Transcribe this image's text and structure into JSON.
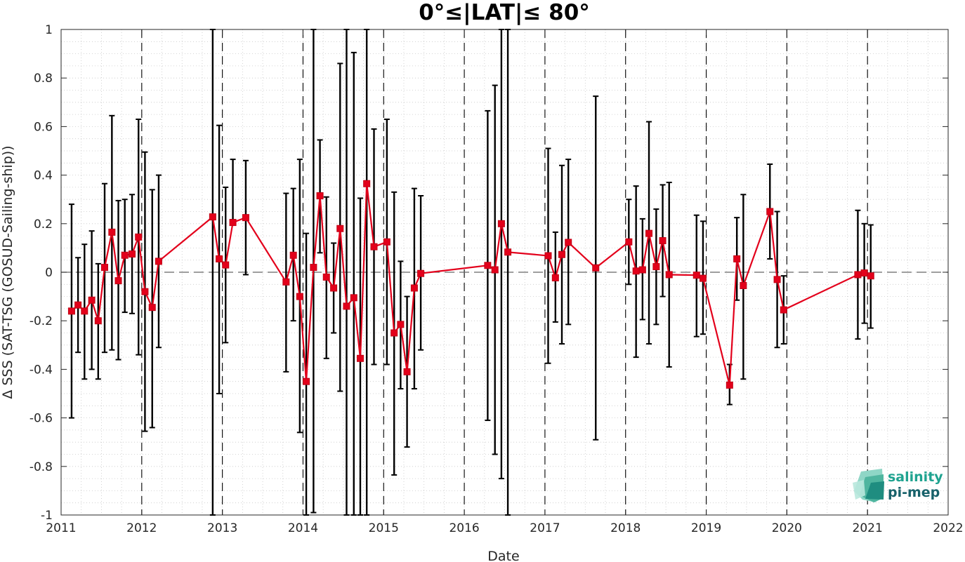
{
  "chart_data": {
    "type": "line",
    "title": "0°≤|LAT|≤ 80°",
    "xlabel": "Date",
    "ylabel": "Δ SSS (SAT-TSG (GOSUD-Sailing-ship))",
    "xlim": [
      2011,
      2022
    ],
    "ylim": [
      -1,
      1
    ],
    "x_ticks": [
      "2011",
      "2012",
      "2013",
      "2014",
      "2015",
      "2016",
      "2017",
      "2018",
      "2019",
      "2020",
      "2021",
      "2022"
    ],
    "y_ticks": [
      "-1",
      "-0.8",
      "-0.6",
      "-0.4",
      "-0.2",
      "0",
      "0.2",
      "0.4",
      "0.6",
      "0.8",
      "1"
    ],
    "grid": "minor dotted",
    "year_boundaries_dashed": true,
    "zero_line_dashed": true,
    "colors": {
      "series": "#e3001b",
      "errorbars": "#000000",
      "grid": "#d0d0d0"
    },
    "series": [
      {
        "marker": "square",
        "x": [
          2011.13,
          2011.21,
          2011.29,
          2011.38,
          2011.46,
          2011.54,
          2011.63,
          2011.71,
          2011.79,
          2011.88,
          2011.96,
          2012.04,
          2012.13,
          2012.21,
          2012.88,
          2012.96,
          2013.04,
          2013.13,
          2013.29,
          2013.79,
          2013.88,
          2013.96,
          2014.04,
          2014.13,
          2014.21,
          2014.29,
          2014.38,
          2014.46,
          2014.54,
          2014.63,
          2014.71,
          2014.79,
          2014.88,
          2015.04,
          2015.13,
          2015.21,
          2015.29,
          2015.38,
          2015.46,
          2016.29,
          2016.38,
          2016.46,
          2016.54,
          2017.04,
          2017.13,
          2017.21,
          2017.29,
          2017.63,
          2018.04,
          2018.13,
          2018.21,
          2018.29,
          2018.38,
          2018.46,
          2018.54,
          2018.88,
          2018.96,
          2019.29,
          2019.38,
          2019.46,
          2019.79,
          2019.88,
          2019.96,
          2020.88,
          2020.96,
          2021.04
        ],
        "y": [
          -0.16,
          -0.135,
          -0.16,
          -0.115,
          -0.2,
          0.02,
          0.165,
          -0.035,
          0.07,
          0.075,
          0.145,
          -0.08,
          -0.145,
          0.045,
          0.228,
          0.055,
          0.03,
          0.205,
          0.225,
          -0.04,
          0.07,
          -0.1,
          -0.45,
          0.02,
          0.315,
          -0.02,
          -0.065,
          0.18,
          -0.14,
          -0.105,
          -0.355,
          0.365,
          0.105,
          0.125,
          -0.25,
          -0.215,
          -0.41,
          -0.065,
          -0.005,
          0.028,
          0.01,
          0.2,
          0.083,
          0.068,
          -0.023,
          0.073,
          0.123,
          0.018,
          0.125,
          0.005,
          0.01,
          0.16,
          0.023,
          0.13,
          -0.01,
          -0.012,
          -0.025,
          -0.465,
          0.055,
          -0.055,
          0.25,
          -0.03,
          -0.155,
          -0.01,
          -0.003,
          -0.015
        ],
        "err_low": [
          -0.6,
          -0.33,
          -0.44,
          -0.4,
          -0.44,
          -0.33,
          -0.32,
          -0.36,
          -0.165,
          -0.17,
          -0.34,
          -0.655,
          -0.64,
          -0.31,
          -1.0,
          -0.5,
          -0.29,
          null,
          -0.01,
          -0.41,
          -0.2,
          -0.66,
          -1.0,
          -0.99,
          0.08,
          -0.355,
          -0.25,
          -0.49,
          -1.0,
          -1.0,
          -1.0,
          -1.0,
          -0.38,
          -0.38,
          -0.835,
          -0.48,
          -0.72,
          -0.48,
          -0.32,
          -0.61,
          -0.75,
          -0.85,
          -1.0,
          -0.375,
          -0.205,
          -0.295,
          -0.215,
          -0.69,
          -0.05,
          -0.35,
          -0.195,
          -0.295,
          -0.215,
          -0.1,
          -0.39,
          -0.265,
          -0.255,
          -0.545,
          -0.115,
          -0.44,
          0.055,
          -0.31,
          -0.295,
          -0.275,
          -0.21,
          -0.23
        ],
        "err_high": [
          0.28,
          0.06,
          0.115,
          0.17,
          0.035,
          0.365,
          0.645,
          0.295,
          0.3,
          0.32,
          0.63,
          0.495,
          0.34,
          0.4,
          1.0,
          0.605,
          0.35,
          0.465,
          0.46,
          0.325,
          0.345,
          0.465,
          0.16,
          1.0,
          0.545,
          0.31,
          0.12,
          0.86,
          1.0,
          0.905,
          0.305,
          1.0,
          0.59,
          0.63,
          0.33,
          0.045,
          -0.1,
          0.345,
          0.315,
          0.665,
          0.77,
          1.0,
          1.0,
          0.51,
          0.165,
          0.44,
          0.465,
          0.725,
          0.3,
          0.355,
          0.22,
          0.62,
          0.26,
          0.36,
          0.37,
          0.235,
          0.21,
          -0.38,
          0.225,
          0.32,
          0.445,
          0.25,
          -0.015,
          0.255,
          0.2,
          0.195
        ]
      }
    ]
  },
  "logo": {
    "line1": "salinity",
    "line2": "pi-mep"
  }
}
